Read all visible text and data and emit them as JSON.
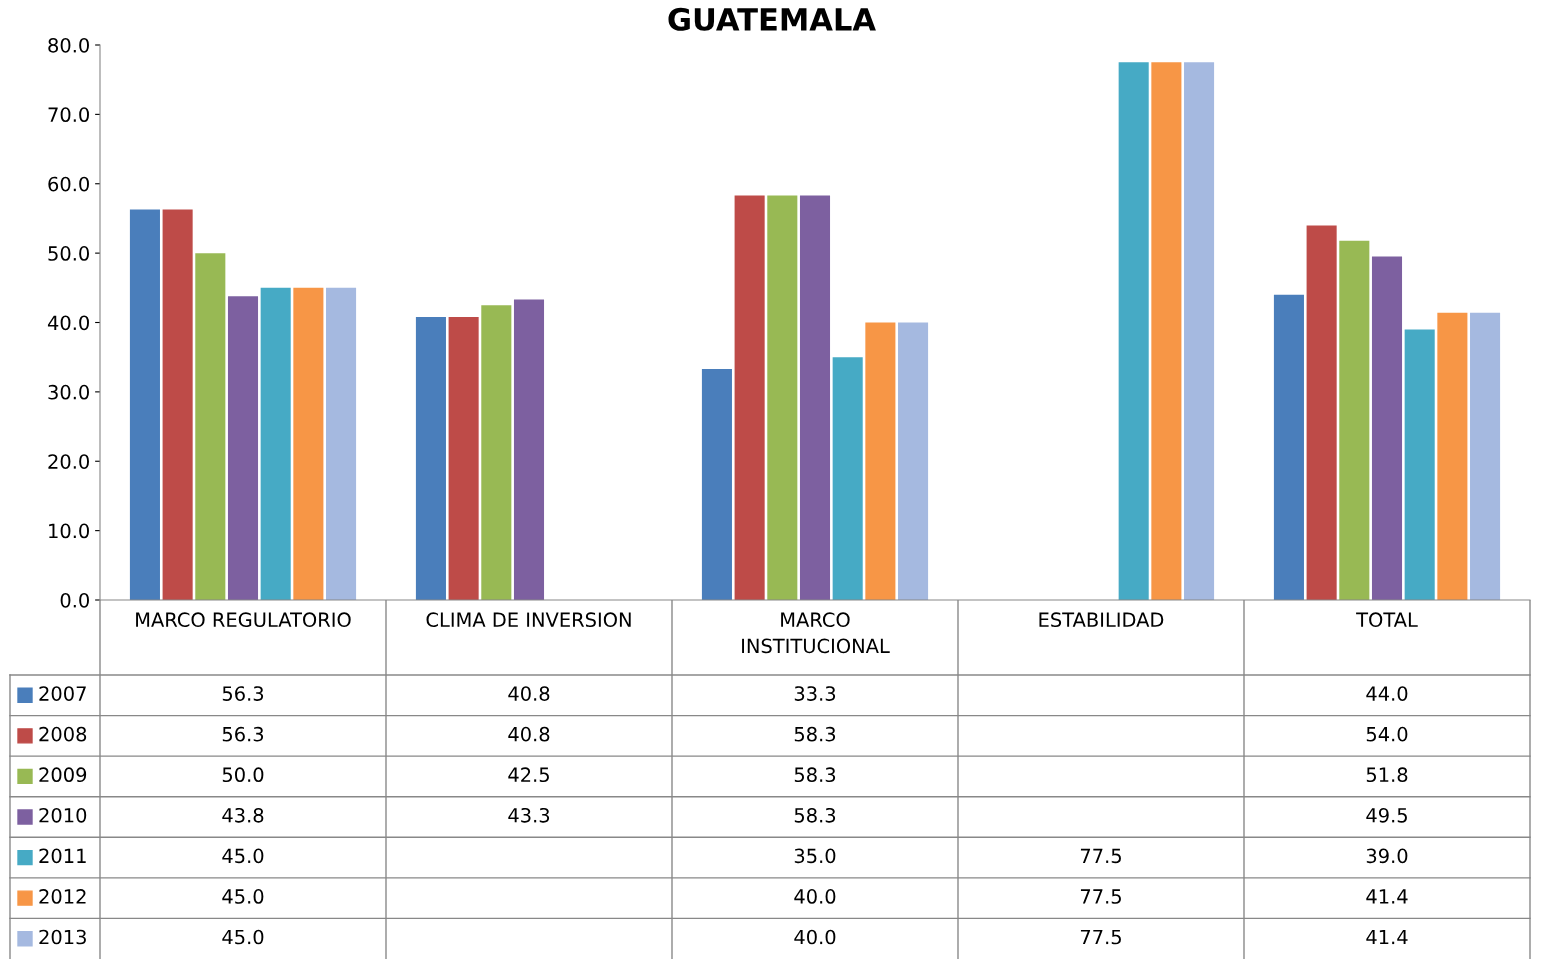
{
  "chart_data": {
    "type": "bar",
    "title": "GUATEMALA",
    "categories": [
      "MARCO REGULATORIO",
      "CLIMA DE INVERSION",
      "MARCO\nINSTITUCIONAL",
      "ESTABILIDAD",
      "TOTAL"
    ],
    "series": [
      {
        "name": "2007",
        "color": "#4a7ebb",
        "values": [
          56.3,
          40.8,
          33.3,
          null,
          44.0
        ],
        "value_labels": [
          "56.3",
          "40.8",
          "33.3",
          null,
          "44.0"
        ]
      },
      {
        "name": "2008",
        "color": "#be4b48",
        "values": [
          56.3,
          40.8,
          58.3,
          null,
          54.0
        ],
        "value_labels": [
          "56.3",
          "40.8",
          "58.3",
          null,
          "54.0"
        ]
      },
      {
        "name": "2009",
        "color": "#98b954",
        "values": [
          50.0,
          42.5,
          58.3,
          null,
          51.8
        ],
        "value_labels": [
          "50.0",
          "42.5",
          "58.3",
          null,
          "51.8"
        ]
      },
      {
        "name": "2010",
        "color": "#7d60a0",
        "values": [
          43.8,
          43.3,
          58.3,
          null,
          49.5
        ],
        "value_labels": [
          "43.8",
          "43.3",
          "58.3",
          null,
          "49.5"
        ]
      },
      {
        "name": "2011",
        "color": "#46aac5",
        "values": [
          45.0,
          null,
          35.0,
          77.5,
          39.0
        ],
        "value_labels": [
          "45.0",
          null,
          "35.0",
          "77.5",
          "39.0"
        ]
      },
      {
        "name": "2012",
        "color": "#f79646",
        "values": [
          45.0,
          null,
          40.0,
          77.5,
          41.4
        ],
        "value_labels": [
          "45.0",
          null,
          "40.0",
          "77.5",
          "41.4"
        ]
      },
      {
        "name": "2013",
        "color": "#a5b9e0",
        "values": [
          45.0,
          null,
          40.0,
          77.5,
          41.4
        ],
        "value_labels": [
          "45.0",
          null,
          "40.0",
          "77.5",
          "41.4"
        ]
      }
    ],
    "ylim": [
      0,
      80
    ],
    "yticks": [
      {
        "value": 0,
        "label": "0.0"
      },
      {
        "value": 10,
        "label": "10.0"
      },
      {
        "value": 20,
        "label": "20.0"
      },
      {
        "value": 30,
        "label": "30.0"
      },
      {
        "value": 40,
        "label": "40.0"
      },
      {
        "value": 50,
        "label": "50.0"
      },
      {
        "value": 60,
        "label": "60.0"
      },
      {
        "value": 70,
        "label": "70.0"
      },
      {
        "value": 80,
        "label": "80.0"
      }
    ],
    "grid": false,
    "legend": "bottom"
  }
}
